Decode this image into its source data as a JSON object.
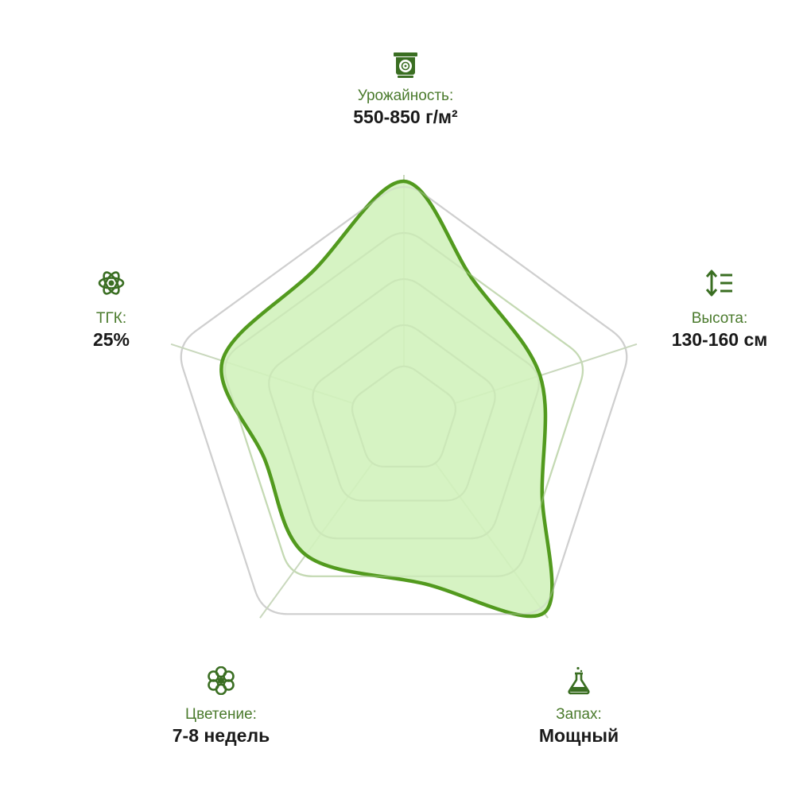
{
  "chart_data": {
    "type": "radar",
    "axes": [
      {
        "key": "yield",
        "label": "Урожайность:",
        "value_text": "550-850 г/м²",
        "icon": "scale-icon",
        "score": 5.0
      },
      {
        "key": "height",
        "label": "Высота:",
        "value_text": "130-160 см",
        "icon": "height-arrows-icon",
        "score": 3.0
      },
      {
        "key": "smell",
        "label": "Запах:",
        "value_text": "Мощный",
        "icon": "flask-icon",
        "score": 5.0
      },
      {
        "key": "flowering",
        "label": "Цветение:",
        "value_text": "7-8 недель",
        "icon": "flower-icon",
        "score": 3.5
      },
      {
        "key": "thc",
        "label": "ТГК:",
        "value_text": "25%",
        "icon": "atom-icon",
        "score": 4.0
      }
    ],
    "scale_max": 5,
    "grid_levels": 5,
    "colors": {
      "fill": "#d2f2bd",
      "stroke": "#529a1e",
      "grid_outer": "#cfcfcf",
      "grid_inner": "#bcd7a8",
      "icon": "#3a6e22",
      "label": "#4a7a2c",
      "value": "#1a1a1a"
    }
  }
}
